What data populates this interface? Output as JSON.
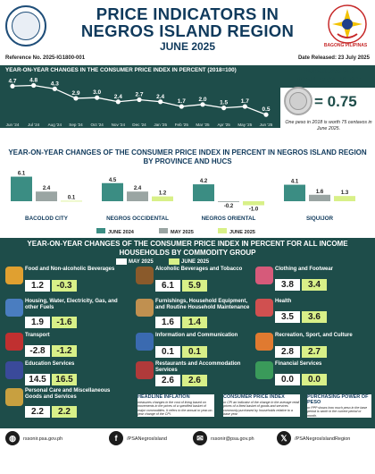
{
  "header": {
    "title_line1": "PRICE INDICATORS IN",
    "title_line2": "NEGROS ISLAND REGION",
    "subtitle": "JUNE 2025",
    "logo_right_label": "BAGONG PILIPINAS",
    "reference_no": "Reference No. 2025-IG1800-001",
    "date_released": "Date Released: 23 July 2025"
  },
  "purchasing_power": {
    "title_line1": "PURCHASING",
    "title_line2": "POWER OF PESO",
    "value": "= 0.75",
    "note": "One peso in 2018 is worth 75 centavos in June 2025."
  },
  "colors": {
    "teal_dark": "#1e4d4a",
    "teal_mid": "#3b8d83",
    "navy": "#103a5c",
    "light_green": "#d8f088",
    "gray": "#9aa5a3"
  },
  "chart_data": [
    {
      "type": "line",
      "title": "YEAR-ON-YEAR CHANGES IN THE CONSUMER PRICE INDEX IN PERCENT (2018=100)",
      "categories": [
        "Jun '24",
        "Jul '24",
        "Aug '24",
        "Sep '24",
        "Oct '24",
        "Nov '24",
        "Dec '24",
        "Jan '25",
        "Feb '25",
        "Mar '25",
        "Apr '25",
        "May '25",
        "Jun '25"
      ],
      "values": [
        4.7,
        4.8,
        4.3,
        2.9,
        3.0,
        2.4,
        2.7,
        2.4,
        1.7,
        2.0,
        1.5,
        1.7,
        0.5
      ],
      "value_labels": [
        "4.7",
        "4.8",
        "4.3",
        "2.9",
        "3.0",
        "2.4",
        "2.7",
        "2.4",
        "1.7",
        "2.0",
        "1.5",
        "1.7",
        "0.5"
      ],
      "ylim": [
        0,
        5
      ],
      "grid": false
    },
    {
      "type": "bar",
      "title": "YEAR-ON-YEAR CHANGES OF THE CONSUMER PRICE INDEX IN PERCENT IN NEGROS ISLAND REGION BY PROVINCE AND HUCS",
      "categories": [
        "BACOLOD CITY",
        "NEGROS OCCIDENTAL",
        "NEGROS ORIENTAL",
        "SIQUIJOR"
      ],
      "series": [
        {
          "name": "JUNE 2024",
          "values": [
            6.1,
            4.5,
            4.2,
            4.1
          ],
          "labels": [
            "6.1",
            "4.5",
            "4.2",
            "4.1"
          ]
        },
        {
          "name": "MAY 2025",
          "values": [
            2.4,
            2.4,
            -0.2,
            1.6
          ],
          "labels": [
            "2.4",
            "2.4",
            "-0.2",
            "1.6"
          ]
        },
        {
          "name": "JUNE 2025",
          "values": [
            0.1,
            1.2,
            -1.0,
            1.3
          ],
          "labels": [
            "0.1",
            "1.2",
            "-1.0",
            "1.3"
          ]
        }
      ],
      "legend_position": "bottom",
      "grid": false
    },
    {
      "type": "table",
      "title": "YEAR-ON-YEAR CHANGES OF THE CONSUMER PRICE INDEX IN PERCENT FOR ALL INCOME HOUSEHOLDS BY COMMODITY GROUP",
      "series_names": [
        "MAY 2025",
        "JUNE 2025"
      ],
      "rows": [
        {
          "label": "Food and Non-alcoholic Beverages",
          "may": "1.2",
          "june": "-0.3",
          "icon": "food-basket-icon"
        },
        {
          "label": "Alcoholic Beverages and Tobacco",
          "may": "6.1",
          "june": "5.9",
          "icon": "bottle-icon"
        },
        {
          "label": "Clothing and Footwear",
          "may": "3.8",
          "june": "3.4",
          "icon": "clothing-icon"
        },
        {
          "label": "Housing, Water, Electricity, Gas, and other Fuels",
          "may": "1.9",
          "june": "-1.6",
          "icon": "house-icon"
        },
        {
          "label": "Furnishings, Household Equipment, and Routine Household Maintenance",
          "may": "1.6",
          "june": "1.4",
          "icon": "furniture-icon"
        },
        {
          "label": "Health",
          "may": "3.5",
          "june": "3.6",
          "icon": "health-icon"
        },
        {
          "label": "Transport",
          "may": "-2.8",
          "june": "-1.2",
          "icon": "jeepney-icon"
        },
        {
          "label": "Information and Communication",
          "may": "0.1",
          "june": "0.1",
          "icon": "phone-icon"
        },
        {
          "label": "Recreation, Sport, and Culture",
          "may": "2.8",
          "june": "2.7",
          "icon": "sports-icon"
        },
        {
          "label": "Education Services",
          "may": "14.5",
          "june": "16.5",
          "icon": "graduation-icon"
        },
        {
          "label": "Restaurants and Accommodation Services",
          "may": "2.6",
          "june": "2.6",
          "icon": "restaurant-icon"
        },
        {
          "label": "Financial Services",
          "may": "0.0",
          "june": "0.0",
          "icon": "money-icon"
        },
        {
          "label": "Personal Care and Miscellaneous Goods and Services",
          "may": "2.2",
          "june": "2.2",
          "icon": "personal-care-icon"
        }
      ]
    }
  ],
  "notes": [
    {
      "heading": "HEADLINE INFLATION",
      "body": "measures changes in the cost of living based on movements in the prices of a specified basket of major commodities. It refers to the annual or year-on-year change of the CPI."
    },
    {
      "heading": "CONSUMER PRICE INDEX",
      "body": "or CPI an indicator of the change in the average retail prices of a fixed basket of goods and services commonly purchased by households relative to a base year."
    },
    {
      "heading": "PURCHASING POWER OF PESO",
      "body": "or PPP shows how much peso in the base period is worth in the current period or month."
    }
  ],
  "footer": {
    "website": "rssonir.psa.gov.ph",
    "facebook": "/PSANegrosIsland",
    "email": "rssonir@psa.gov.ph",
    "twitter": "/PSANegrosIslandRegion"
  }
}
